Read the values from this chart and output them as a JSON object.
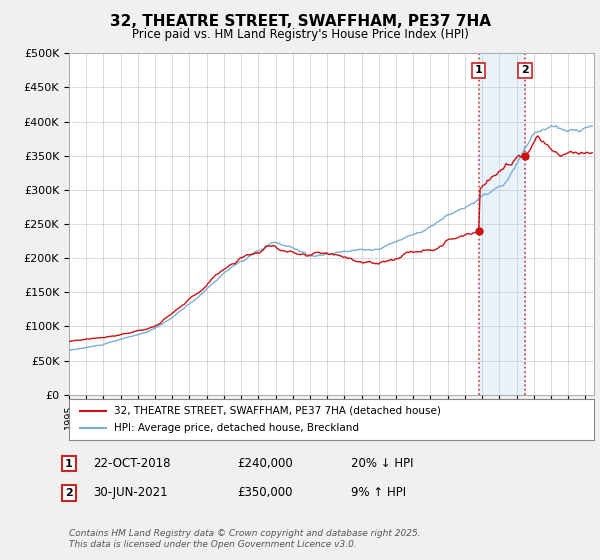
{
  "title": "32, THEATRE STREET, SWAFFHAM, PE37 7HA",
  "subtitle": "Price paid vs. HM Land Registry's House Price Index (HPI)",
  "ylabel_ticks": [
    "£0",
    "£50K",
    "£100K",
    "£150K",
    "£200K",
    "£250K",
    "£300K",
    "£350K",
    "£400K",
    "£450K",
    "£500K"
  ],
  "ytick_values": [
    0,
    50000,
    100000,
    150000,
    200000,
    250000,
    300000,
    350000,
    400000,
    450000,
    500000
  ],
  "ylim": [
    0,
    500000
  ],
  "xlim_start": 1995,
  "xlim_end": 2025.5,
  "hpi_color": "#7aaed4",
  "price_color": "#cc1111",
  "vline_color": "#cc2222",
  "shade_color": "#d8eaf7",
  "transaction1_date": 2018.81,
  "transaction1_price": 240000,
  "transaction1_label": "1",
  "transaction2_date": 2021.49,
  "transaction2_price": 350000,
  "transaction2_label": "2",
  "legend_line1": "32, THEATRE STREET, SWAFFHAM, PE37 7HA (detached house)",
  "legend_line2": "HPI: Average price, detached house, Breckland",
  "annotation1_date": "22-OCT-2018",
  "annotation1_price": "£240,000",
  "annotation1_note": "20% ↓ HPI",
  "annotation2_date": "30-JUN-2021",
  "annotation2_price": "£350,000",
  "annotation2_note": "9% ↑ HPI",
  "footer": "Contains HM Land Registry data © Crown copyright and database right 2025.\nThis data is licensed under the Open Government Licence v3.0.",
  "background_color": "#f0f0f0",
  "plot_bg_color": "#ffffff",
  "grid_color": "#cccccc"
}
